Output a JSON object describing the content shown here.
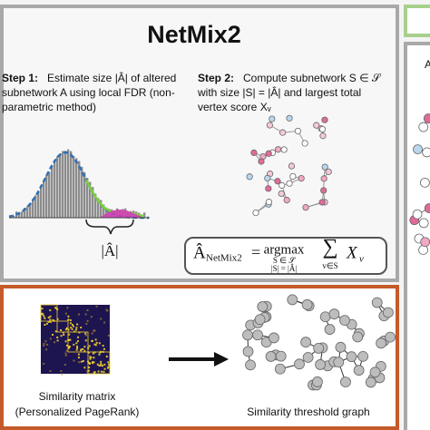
{
  "top_panel": {
    "title": "NetMix2",
    "step1": {
      "label": "Step 1:",
      "lines": [
        "Estimate size |Â| of altered",
        "subnetwork A using local FDR (non-",
        "parametric method)"
      ]
    },
    "step2": {
      "label": "Step 2:",
      "lines": [
        "Compute subnetwork S ∈ 𝒮",
        "with size |S| = |Â| and largest total",
        "vertex score Xᵥ"
      ]
    },
    "brace_label": "|Â|",
    "formula": {
      "lhs": "Â",
      "lhs_sub": "NetMix2",
      "eq": "=",
      "op": "argmax",
      "op_under1": "S ∈ 𝒮",
      "op_under2": "|S| = |Â|",
      "sum": "∑",
      "sum_under": "v∈S",
      "term": "X",
      "term_sub": "v"
    }
  },
  "bottom_panel": {
    "matrix_label": [
      "Similarity matrix",
      "(Personalized PageRank)"
    ],
    "graph_label": "Similarity threshold graph"
  },
  "right_panel": {
    "heading": "Al"
  }
}
